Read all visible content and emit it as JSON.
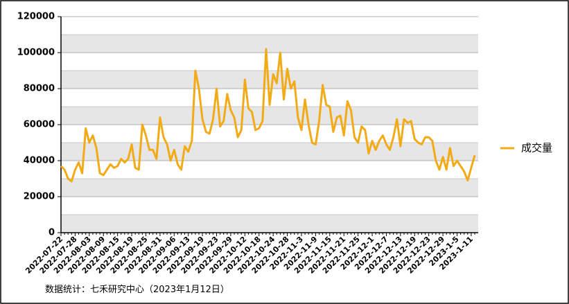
{
  "chart_data": {
    "type": "line",
    "categories": [
      "2022-07-22",
      null,
      null,
      null,
      "2022-07-28",
      null,
      null,
      null,
      "2022-08-03",
      null,
      null,
      null,
      "2022-08-09",
      null,
      null,
      null,
      "2022-08-15",
      null,
      null,
      null,
      "2022-08-19",
      null,
      null,
      null,
      "2022-08-25",
      null,
      null,
      null,
      "2022-08-31",
      null,
      null,
      null,
      "2022-09-06",
      null,
      null,
      null,
      "2022-09-13",
      null,
      null,
      null,
      "2022-09-19",
      null,
      null,
      null,
      "2022-09-23",
      null,
      null,
      null,
      "2022-09-29",
      null,
      null,
      null,
      "2022-10-12",
      null,
      null,
      null,
      "2022-10-18",
      null,
      null,
      null,
      "2022-10-24",
      null,
      null,
      null,
      "2022-10-28",
      null,
      null,
      null,
      "2022-11-3",
      null,
      null,
      null,
      "2022-11-9",
      null,
      null,
      null,
      "2022-11-15",
      null,
      null,
      null,
      "2022-11-21",
      null,
      null,
      null,
      "2022-11-25",
      null,
      null,
      null,
      "2022-12-1",
      null,
      null,
      null,
      "2022-12-7",
      null,
      null,
      null,
      "2022-12-13",
      null,
      null,
      null,
      "2022-12-19",
      null,
      null,
      null,
      "2022-12-23",
      null,
      null,
      null,
      "2022-12-29",
      null,
      null,
      null,
      "2023-1-5",
      null,
      null,
      null,
      "2023-1-11",
      null
    ],
    "series": [
      {
        "name": "成交量",
        "color": "#f2ab16",
        "values": [
          37000,
          35000,
          30000,
          28500,
          35000,
          39000,
          33000,
          58000,
          50000,
          54000,
          47000,
          33000,
          32000,
          35000,
          38000,
          36000,
          37000,
          41000,
          39000,
          41000,
          49000,
          36000,
          35000,
          60000,
          54000,
          46000,
          46000,
          41000,
          64000,
          53000,
          49000,
          40000,
          46000,
          38000,
          35000,
          48000,
          45000,
          51000,
          90000,
          80000,
          63000,
          56000,
          55000,
          63000,
          80000,
          59000,
          62000,
          77000,
          68000,
          64000,
          53000,
          57000,
          85000,
          69000,
          67000,
          57000,
          58000,
          62000,
          102000,
          71000,
          88000,
          83000,
          100000,
          74000,
          91000,
          80000,
          84000,
          64000,
          57000,
          74000,
          60000,
          50000,
          49000,
          62000,
          82000,
          71000,
          70000,
          56000,
          64000,
          65000,
          54000,
          73000,
          68000,
          53000,
          50000,
          59000,
          57000,
          44000,
          51000,
          46000,
          51000,
          54000,
          49000,
          46000,
          53000,
          63000,
          48000,
          63000,
          61000,
          62000,
          52000,
          50000,
          49000,
          53000,
          53000,
          51000,
          40000,
          35000,
          42000,
          35000,
          47000,
          37000,
          40000,
          37000,
          34000,
          29000,
          36000,
          43000
        ]
      }
    ],
    "ylim": [
      0,
      120000
    ],
    "yticks": [
      0,
      20000,
      40000,
      60000,
      80000,
      100000,
      120000
    ],
    "grid": true,
    "legend": "right",
    "source": "数据统计：七禾研究中心（2023年1月12日）"
  }
}
